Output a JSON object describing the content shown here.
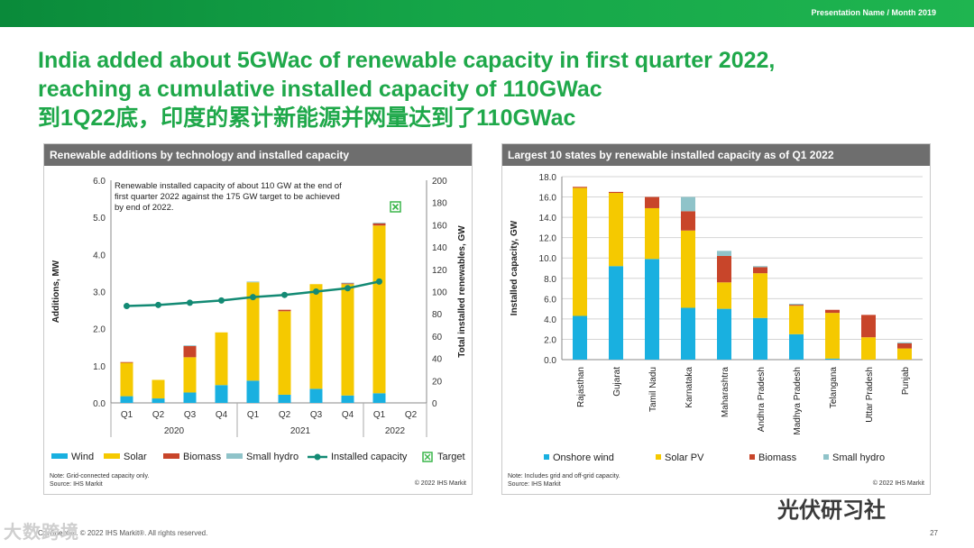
{
  "header": {
    "presentation": "Presentation Name / Month 2019"
  },
  "title": {
    "line1": "India added about 5GWac of renewable capacity in first quarter 2022,",
    "line2": "reaching a cumulative installed capacity of 110GWac",
    "line3": "到1Q22底，印度的累计新能源并网量达到了110GWac"
  },
  "colors": {
    "wind": "#19b0e0",
    "solar": "#f5c900",
    "biomass": "#c8452a",
    "hydro": "#8fc3c9",
    "line": "#138a74",
    "target": "#3ab54a",
    "accent": "#1fa84a"
  },
  "chart_data": [
    {
      "type": "bar",
      "stacked": true,
      "title": "Renewable additions by technology and installed capacity",
      "categories": [
        "Q1",
        "Q2",
        "Q3",
        "Q4",
        "Q1",
        "Q2",
        "Q3",
        "Q4",
        "Q1",
        "Q2"
      ],
      "years": [
        {
          "label": "2020",
          "span": 4
        },
        {
          "label": "2021",
          "span": 4
        },
        {
          "label": "2022",
          "span": 2
        }
      ],
      "ylabel": "Additions, MW",
      "ylabel2": "Total installed renewables, GW",
      "ylim": [
        0,
        6
      ],
      "yticks": [
        "0.0",
        "1.0",
        "2.0",
        "3.0",
        "4.0",
        "5.0",
        "6.0"
      ],
      "ylim2": [
        0,
        200
      ],
      "yticks2": [
        "0",
        "20",
        "40",
        "60",
        "80",
        "100",
        "120",
        "140",
        "160",
        "180",
        "200"
      ],
      "series": [
        {
          "name": "Wind",
          "values": [
            0.18,
            0.12,
            0.28,
            0.48,
            0.6,
            0.22,
            0.38,
            0.2,
            0.26,
            0
          ]
        },
        {
          "name": "Solar",
          "values": [
            0.9,
            0.5,
            0.95,
            1.42,
            2.65,
            2.25,
            2.82,
            3.0,
            4.52,
            0
          ]
        },
        {
          "name": "Biomass",
          "values": [
            0.02,
            0,
            0.3,
            0,
            0,
            0.04,
            0,
            0.02,
            0.06,
            0
          ]
        },
        {
          "name": "Small hydro",
          "values": [
            0,
            0,
            0.02,
            0,
            0.02,
            0,
            0,
            0.02,
            0.02,
            0
          ]
        }
      ],
      "line": {
        "name": "Installed capacity",
        "values": [
          87,
          88,
          90,
          92,
          95,
          97,
          100,
          103,
          109,
          null
        ]
      },
      "annotation": [
        "Renewable installed capacity of about 110 GW at the end of",
        "first quarter 2022 against the 175 GW target to be achieved",
        "by end of 2022."
      ],
      "legend": [
        "Wind",
        "Solar",
        "Biomass",
        "Small hydro",
        "Installed capacity",
        "Target"
      ],
      "note": "Note: Grid-connected capacity only.",
      "source": "Source: IHS Markit",
      "copyright": "© 2022 IHS Markit"
    },
    {
      "type": "bar",
      "stacked": true,
      "title": "Largest 10 states by renewable installed capacity as of Q1 2022",
      "categories": [
        "Rajasthan",
        "Gujarat",
        "Tamil Nadu",
        "Karnataka",
        "Maharashtra",
        "Andhra Pradesh",
        "Madhya Pradesh",
        "Telangana",
        "Uttar Pradesh",
        "Punjab"
      ],
      "ylabel": "Installed capacity, GW",
      "ylim": [
        0,
        18
      ],
      "yticks": [
        "0.0",
        "2.0",
        "4.0",
        "6.0",
        "8.0",
        "10.0",
        "12.0",
        "14.0",
        "16.0",
        "18.0"
      ],
      "series": [
        {
          "name": "Onshore wind",
          "values": [
            4.3,
            9.2,
            9.9,
            5.1,
            5.0,
            4.1,
            2.5,
            0.1,
            0,
            0
          ]
        },
        {
          "name": "Solar PV",
          "values": [
            12.6,
            7.2,
            5.0,
            7.6,
            2.6,
            4.4,
            2.8,
            4.5,
            2.2,
            1.1
          ]
        },
        {
          "name": "Biomass",
          "values": [
            0.1,
            0.1,
            1.1,
            1.9,
            2.6,
            0.6,
            0.1,
            0.3,
            2.2,
            0.5
          ]
        },
        {
          "name": "Small hydro",
          "values": [
            0,
            0,
            0,
            1.4,
            0.5,
            0.1,
            0.1,
            0,
            0,
            0.1
          ]
        }
      ],
      "legend": [
        "Onshore wind",
        "Solar PV",
        "Biomass",
        "Small hydro"
      ],
      "note": "Note: Includes grid and off-grid capacity.",
      "source": "Source: IHS Markit",
      "copyright": "© 2022 IHS Markit"
    }
  ],
  "footer": {
    "confidential": "Confidential. © 2022 IHS Markit®. All rights reserved.",
    "page": "27"
  },
  "watermarks": {
    "left": "大数跨境",
    "right": "光伏研习社"
  }
}
